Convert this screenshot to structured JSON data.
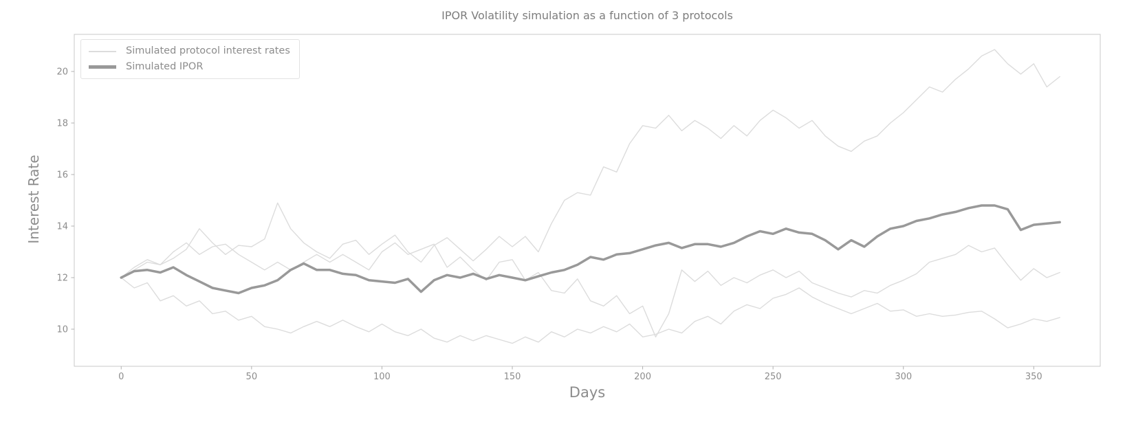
{
  "title": "IPOR Volatility simulation as a function of 3 protocols",
  "colors": {
    "background": "#ffffff",
    "protocol_line": "#dcdcdc",
    "ipor_line": "#999999",
    "spine": "#c9c9c9",
    "tick_mark": "#b0b0b0",
    "tick_label": "#8c8c8c",
    "title_text": "#7d7d7d",
    "axis_label_text": "#8c8c8c",
    "legend_border": "#e2e2e2",
    "legend_text": "#8c8c8c"
  },
  "legend": {
    "items": [
      {
        "label": "Simulated protocol interest rates",
        "color": "#dcdcdc",
        "thickness": "thin"
      },
      {
        "label": "Simulated IPOR",
        "color": "#999999",
        "thickness": "thick"
      }
    ]
  },
  "chart_data": {
    "type": "line",
    "title": "IPOR Volatility simulation as a function of 3 protocols",
    "xlabel": "Days",
    "ylabel": "Interest Rate",
    "xlim": [
      -18,
      375.5
    ],
    "ylim": [
      8.56,
      21.44
    ],
    "xticks": [
      0,
      50,
      100,
      150,
      200,
      250,
      300,
      350
    ],
    "yticks": [
      10,
      12,
      14,
      16,
      18,
      20
    ],
    "grid": false,
    "legend_position": "upper left",
    "x_start": 0,
    "x_step": 5,
    "series": [
      {
        "name": "Simulated protocol interest rate 1",
        "role": "protocol",
        "values": [
          12.0,
          12.3,
          12.6,
          12.5,
          12.75,
          13.1,
          13.9,
          13.35,
          12.9,
          13.25,
          13.2,
          13.5,
          14.9,
          13.9,
          13.35,
          13.0,
          12.75,
          13.3,
          13.45,
          12.9,
          13.3,
          13.65,
          13.0,
          12.6,
          13.25,
          13.55,
          13.1,
          12.65,
          13.1,
          13.6,
          13.2,
          13.6,
          13.0,
          14.1,
          15.0,
          15.3,
          15.2,
          16.3,
          16.1,
          17.2,
          17.9,
          17.8,
          18.3,
          17.7,
          18.1,
          17.8,
          17.4,
          17.9,
          17.5,
          18.1,
          18.5,
          18.2,
          17.8,
          18.1,
          17.5,
          17.1,
          16.9,
          17.3,
          17.5,
          18.0,
          18.4,
          18.9,
          19.4,
          19.2,
          19.7,
          20.1,
          20.6,
          20.85,
          20.3,
          19.9,
          20.3,
          19.4,
          19.8
        ]
      },
      {
        "name": "Simulated protocol interest rate 2",
        "role": "protocol",
        "values": [
          12.0,
          12.4,
          12.7,
          12.5,
          13.0,
          13.35,
          12.9,
          13.2,
          13.3,
          12.9,
          12.6,
          12.3,
          12.6,
          12.3,
          12.6,
          12.9,
          12.6,
          12.9,
          12.6,
          12.3,
          13.0,
          13.35,
          12.9,
          13.1,
          13.3,
          12.4,
          12.8,
          12.3,
          11.9,
          12.6,
          12.7,
          11.9,
          12.2,
          11.5,
          11.4,
          11.95,
          11.1,
          10.9,
          11.3,
          10.6,
          10.9,
          9.7,
          10.6,
          12.3,
          11.85,
          12.25,
          11.7,
          12.0,
          11.8,
          12.1,
          12.3,
          12.0,
          12.25,
          11.8,
          11.6,
          11.4,
          11.25,
          11.5,
          11.4,
          11.7,
          11.9,
          12.15,
          12.6,
          12.75,
          12.9,
          13.25,
          13.0,
          13.15,
          12.5,
          11.9,
          12.35,
          12.0,
          12.2
        ]
      },
      {
        "name": "Simulated protocol interest rate 3",
        "role": "protocol",
        "values": [
          12.0,
          11.6,
          11.8,
          11.1,
          11.3,
          10.9,
          11.1,
          10.6,
          10.7,
          10.35,
          10.5,
          10.1,
          10.0,
          9.85,
          10.1,
          10.3,
          10.1,
          10.35,
          10.1,
          9.9,
          10.2,
          9.9,
          9.75,
          10.0,
          9.65,
          9.5,
          9.75,
          9.55,
          9.75,
          9.6,
          9.45,
          9.7,
          9.5,
          9.9,
          9.7,
          10.0,
          9.85,
          10.1,
          9.9,
          10.2,
          9.7,
          9.8,
          10.0,
          9.85,
          10.3,
          10.5,
          10.2,
          10.7,
          10.95,
          10.8,
          11.2,
          11.35,
          11.6,
          11.25,
          11.0,
          10.8,
          10.6,
          10.8,
          11.0,
          10.7,
          10.75,
          10.5,
          10.6,
          10.5,
          10.55,
          10.65,
          10.7,
          10.4,
          10.05,
          10.2,
          10.4,
          10.3,
          10.45
        ]
      },
      {
        "name": "Simulated IPOR",
        "role": "ipor",
        "values": [
          12.0,
          12.25,
          12.3,
          12.2,
          12.4,
          12.1,
          11.85,
          11.6,
          11.5,
          11.4,
          11.6,
          11.7,
          11.9,
          12.3,
          12.55,
          12.3,
          12.3,
          12.15,
          12.1,
          11.9,
          11.85,
          11.8,
          11.95,
          11.45,
          11.9,
          12.1,
          12.0,
          12.15,
          11.95,
          12.1,
          12.0,
          11.9,
          12.05,
          12.2,
          12.3,
          12.5,
          12.8,
          12.7,
          12.9,
          12.95,
          13.1,
          13.25,
          13.35,
          13.15,
          13.3,
          13.3,
          13.2,
          13.35,
          13.6,
          13.8,
          13.7,
          13.9,
          13.75,
          13.7,
          13.45,
          13.1,
          13.45,
          13.2,
          13.6,
          13.9,
          14.0,
          14.2,
          14.3,
          14.45,
          14.55,
          14.7,
          14.8,
          14.8,
          14.65,
          13.85,
          14.05,
          14.1,
          14.15
        ]
      }
    ]
  }
}
